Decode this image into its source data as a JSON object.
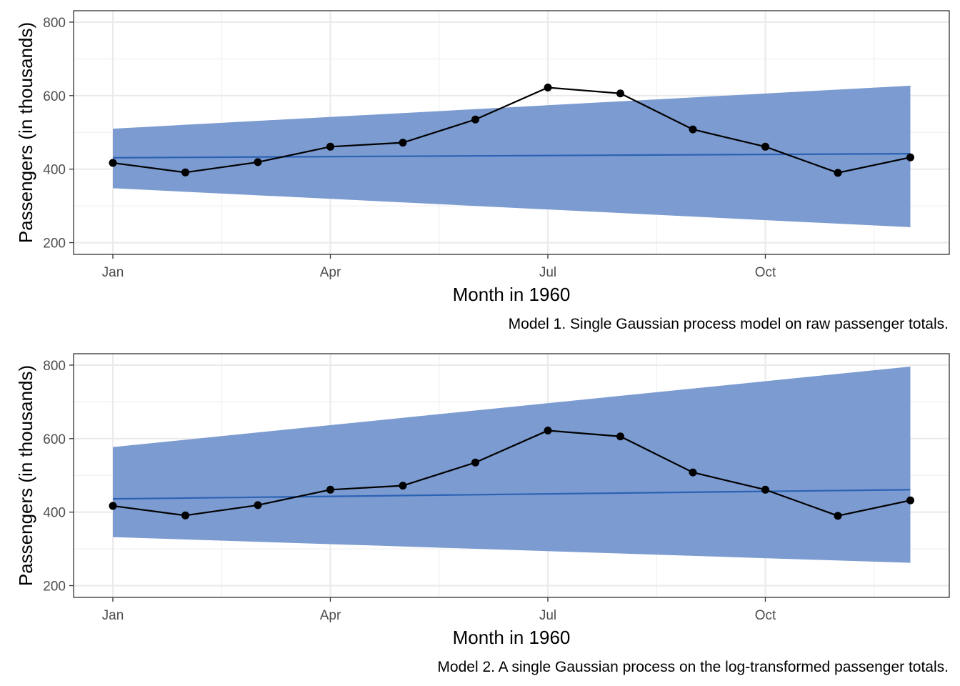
{
  "chart_data": [
    {
      "type": "line",
      "caption": "Model 1. Single Gaussian process model on raw passenger totals.",
      "xlabel": "Month in 1960",
      "ylabel": "Passengers (in thousands)",
      "x_ticks": [
        "Jan",
        "Apr",
        "Jul",
        "Oct"
      ],
      "y_ticks": [
        200,
        400,
        600,
        800
      ],
      "ylim": [
        168,
        831
      ],
      "grid": true,
      "series": [
        {
          "x": [
            "1960-01",
            "1960-02",
            "1960-03",
            "1960-04",
            "1960-05",
            "1960-06",
            "1960-07",
            "1960-08",
            "1960-09",
            "1960-10",
            "1960-11",
            "1960-12"
          ],
          "values": [
            417,
            391,
            419,
            461,
            472,
            535,
            622,
            606,
            508,
            461,
            390,
            432
          ],
          "color": "#000000"
        },
        {
          "x": [
            "1960-01",
            "1960-12"
          ],
          "mean": [
            431,
            442
          ],
          "lower": [
            348,
            242
          ],
          "upper": [
            510,
            627
          ],
          "color": "#2c62b3",
          "band_color": "#7b9bd1"
        }
      ]
    },
    {
      "type": "line",
      "caption": "Model 2. A single Gaussian process on the log-transformed passenger totals.",
      "xlabel": "Month in 1960",
      "ylabel": "Passengers (in thousands)",
      "x_ticks": [
        "Jan",
        "Apr",
        "Jul",
        "Oct"
      ],
      "y_ticks": [
        200,
        400,
        600,
        800
      ],
      "ylim": [
        168,
        831
      ],
      "grid": true,
      "series": [
        {
          "x": [
            "1960-01",
            "1960-02",
            "1960-03",
            "1960-04",
            "1960-05",
            "1960-06",
            "1960-07",
            "1960-08",
            "1960-09",
            "1960-10",
            "1960-11",
            "1960-12"
          ],
          "values": [
            417,
            391,
            419,
            461,
            472,
            535,
            622,
            606,
            508,
            461,
            390,
            432
          ],
          "color": "#000000"
        },
        {
          "x": [
            "1960-01",
            "1960-12"
          ],
          "mean": [
            436,
            461
          ],
          "lower": [
            332,
            262
          ],
          "upper": [
            577,
            796
          ],
          "color": "#2c62b3",
          "band_color": "#7b9bd1"
        }
      ]
    }
  ]
}
